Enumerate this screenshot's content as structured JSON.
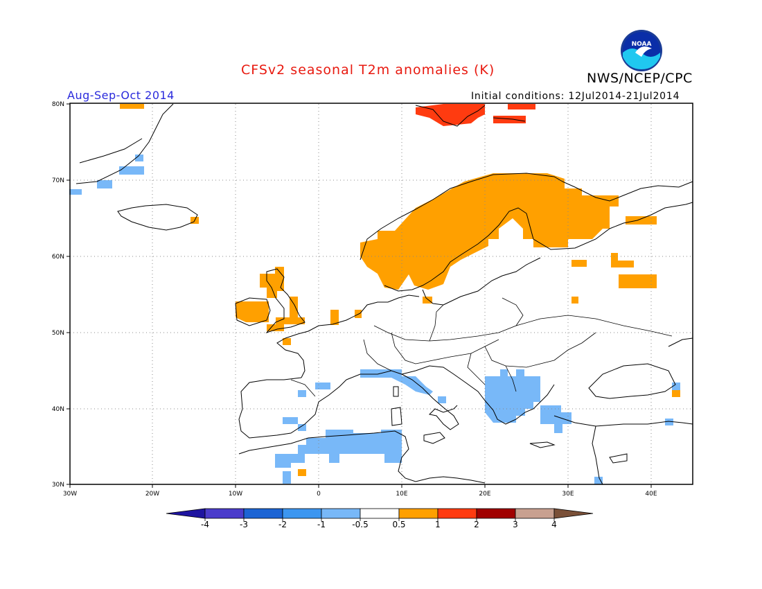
{
  "header": {
    "title": "CFSv2 seasonal T2m anomalies (K)",
    "organization": "NWS/NCEP/CPC",
    "logo_text": "NOAA",
    "period": "Aug-Sep-Oct 2014",
    "initial_conditions": "Initial conditions: 12Jul2014-21Jul2014"
  },
  "map": {
    "lat_range": [
      30,
      80
    ],
    "lon_range": [
      -30,
      45
    ],
    "lat_labels": [
      "80N",
      "70N",
      "60N",
      "50N",
      "40N",
      "30N"
    ],
    "lon_labels": [
      "30W",
      "20W",
      "10W",
      "0",
      "10E",
      "20E",
      "30E",
      "40E"
    ],
    "region": "Europe",
    "anomaly_regions": [
      {
        "area": "Scandinavia, Finland, northwest Russia",
        "anomaly": "0.5 to 1",
        "color": "#ffa000"
      },
      {
        "area": "Ireland, Scotland, Wales, northern France",
        "anomaly": "0.5 to 1",
        "color": "#ffa000"
      },
      {
        "area": "Svalbard",
        "anomaly": "1 to 2",
        "color": "#ff3b10"
      },
      {
        "area": "Balkans, Greece, Aegean",
        "anomaly": "-1 to -0.5",
        "color": "#78b8f8"
      },
      {
        "area": "Italy, Tyrrhenian Sea",
        "anomaly": "-1 to -0.5",
        "color": "#78b8f8"
      },
      {
        "area": "Western Mediterranean, North Africa coast",
        "anomaly": "-1 to -0.5",
        "color": "#78b8f8"
      },
      {
        "area": "Southeast Greenland",
        "anomaly": "-1 to -0.5",
        "color": "#78b8f8"
      }
    ]
  },
  "colorbar": {
    "labels": [
      "-4",
      "-3",
      "-2",
      "-1",
      "-0.5",
      "0.5",
      "1",
      "2",
      "3",
      "4"
    ],
    "colors": [
      "#1e14a0",
      "#4b3ccb",
      "#1c64d4",
      "#3c96f0",
      "#78b8f8",
      "#ffffff",
      "#ffa000",
      "#ff3b10",
      "#a00000",
      "#c8a090",
      "#7a5038"
    ]
  }
}
